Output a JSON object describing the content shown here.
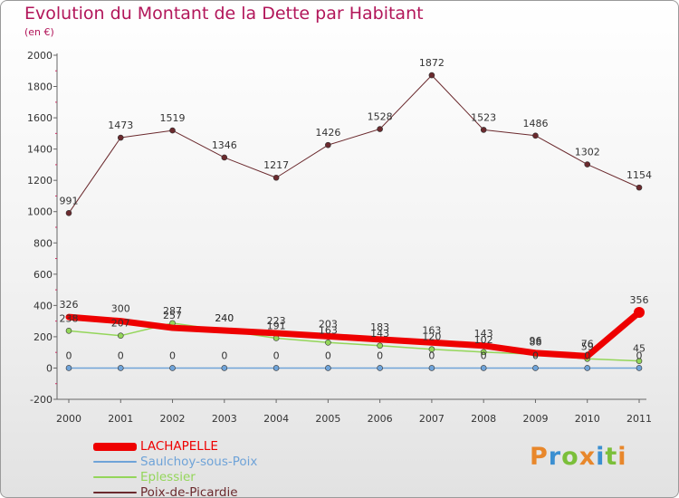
{
  "header": {
    "title": "Evolution du Montant de la Dette par Habitant",
    "subtitle": "(en €)"
  },
  "logo": {
    "text": "Proxiti",
    "colors": [
      "#e8872b",
      "#3b8fd1",
      "#7bbf3a",
      "#e8872b",
      "#3b8fd1",
      "#7bbf3a",
      "#e8872b"
    ]
  },
  "chart_data": {
    "type": "line",
    "title": "Evolution du Montant de la Dette par Habitant",
    "subtitle": "(en €)",
    "xlabel": "",
    "ylabel": "",
    "ylim": [
      -200,
      2000
    ],
    "yticks": [
      -200,
      0,
      200,
      400,
      600,
      800,
      1000,
      1200,
      1400,
      1600,
      1800,
      2000
    ],
    "x": [
      "2000",
      "2001",
      "2002",
      "2003",
      "2004",
      "2005",
      "2006",
      "2007",
      "2008",
      "2009",
      "2010",
      "2011"
    ],
    "grid": false,
    "legend_position": "bottom-left",
    "series": [
      {
        "name": "LACHAPELLE",
        "color": "#ee0000",
        "values": [
          326,
          300,
          257,
          240,
          223,
          203,
          183,
          163,
          143,
          96,
          76,
          356
        ]
      },
      {
        "name": "Saulchoy-sous-Poix",
        "color": "#6fa3d8",
        "values": [
          0,
          0,
          0,
          0,
          0,
          0,
          0,
          0,
          0,
          0,
          0,
          0
        ]
      },
      {
        "name": "Eplessier",
        "color": "#94d65a",
        "values": [
          238,
          207,
          287,
          240,
          191,
          163,
          143,
          120,
          102,
          88,
          59,
          45
        ]
      },
      {
        "name": "Poix-de-Picardie",
        "color": "#6b2a2e",
        "values": [
          991,
          1473,
          1519,
          1346,
          1217,
          1426,
          1528,
          1872,
          1523,
          1486,
          1302,
          1154
        ]
      }
    ]
  }
}
